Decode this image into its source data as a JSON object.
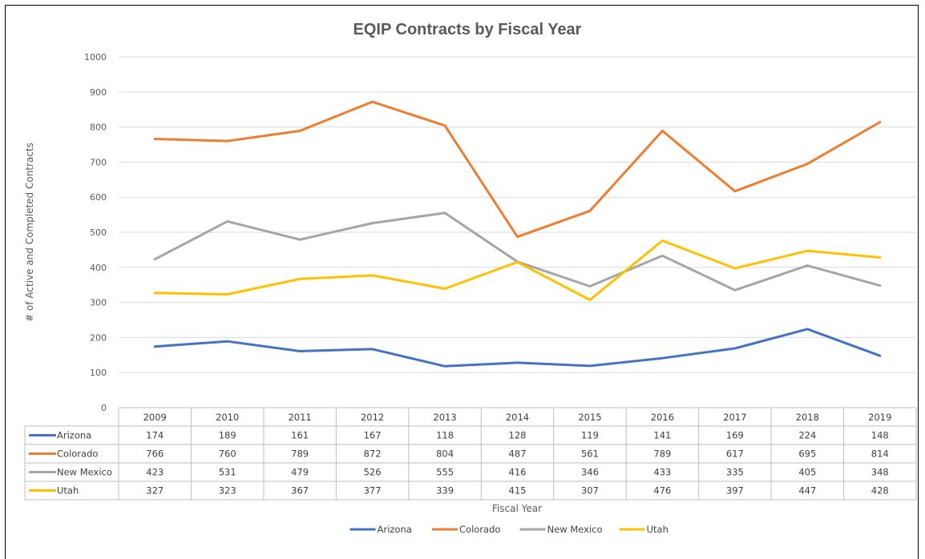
{
  "chart_data": {
    "type": "line",
    "title": "EQIP Contracts by Fiscal Year",
    "xlabel": "Fiscal Year",
    "ylabel": "# of Active and Completed Contracts",
    "ylim": [
      0,
      1000
    ],
    "yticks": [
      0,
      100,
      200,
      300,
      400,
      500,
      600,
      700,
      800,
      900,
      1000
    ],
    "grid": true,
    "legend_position": "bottom",
    "categories": [
      "2009",
      "2010",
      "2011",
      "2012",
      "2013",
      "2014",
      "2015",
      "2016",
      "2017",
      "2018",
      "2019"
    ],
    "series": [
      {
        "name": "Arizona",
        "color": "#4472C4",
        "values": [
          174,
          189,
          161,
          167,
          118,
          128,
          119,
          141,
          169,
          224,
          148
        ]
      },
      {
        "name": "Colorado",
        "color": "#ED7D31",
        "values": [
          766,
          760,
          789,
          872,
          804,
          487,
          561,
          789,
          617,
          695,
          814
        ]
      },
      {
        "name": "New Mexico",
        "color": "#A5A5A5",
        "values": [
          423,
          531,
          479,
          526,
          555,
          416,
          346,
          433,
          335,
          405,
          348
        ]
      },
      {
        "name": "Utah",
        "color": "#FFC000",
        "values": [
          327,
          323,
          367,
          377,
          339,
          415,
          307,
          476,
          397,
          447,
          428
        ]
      }
    ]
  }
}
